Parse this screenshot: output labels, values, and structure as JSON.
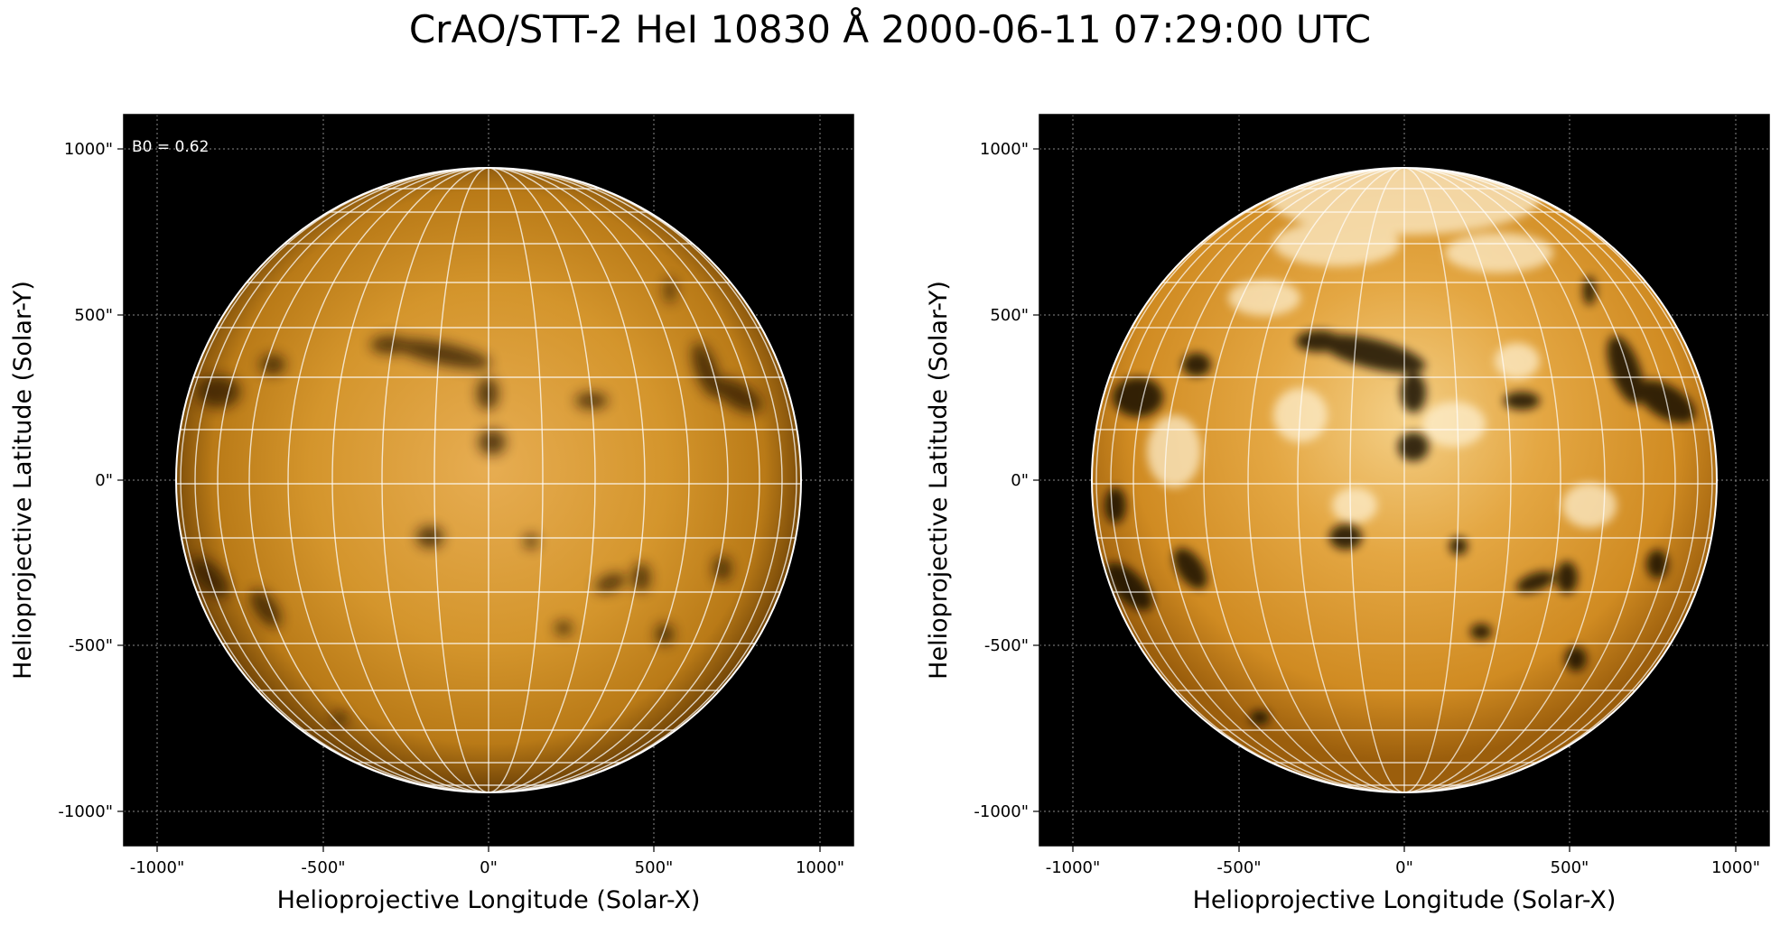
{
  "figure": {
    "title": "CrAO/STT-2 HeI 10830 Å 2000-06-11 07:29:00 UTC"
  },
  "panels": [
    {
      "id": "left",
      "annotation": "B0 = 0.62",
      "xlabel": "Helioprojective Longitude (Solar-X)",
      "ylabel": "Helioprojective Latitude (Solar-Y)",
      "xticks": [
        "-1000\"",
        "-500\"",
        "0\"",
        "500\"",
        "1000\""
      ],
      "yticks": [
        "1000\"",
        "500\"",
        "0\"",
        "-500\"",
        "-1000\""
      ],
      "contrast": "normal"
    },
    {
      "id": "right",
      "annotation": "",
      "xlabel": "Helioprojective Longitude (Solar-X)",
      "ylabel": "Helioprojective Latitude (Solar-Y)",
      "xticks": [
        "-1000\"",
        "-500\"",
        "0\"",
        "500\"",
        "1000\""
      ],
      "yticks": [
        "1000\"",
        "500\"",
        "0\"",
        "-500\"",
        "-1000\""
      ],
      "contrast": "enhanced"
    }
  ],
  "colors": {
    "background": "#000000",
    "disk": "#c98a1c",
    "limb": "#ffffff",
    "grid": "#ffffff"
  }
}
